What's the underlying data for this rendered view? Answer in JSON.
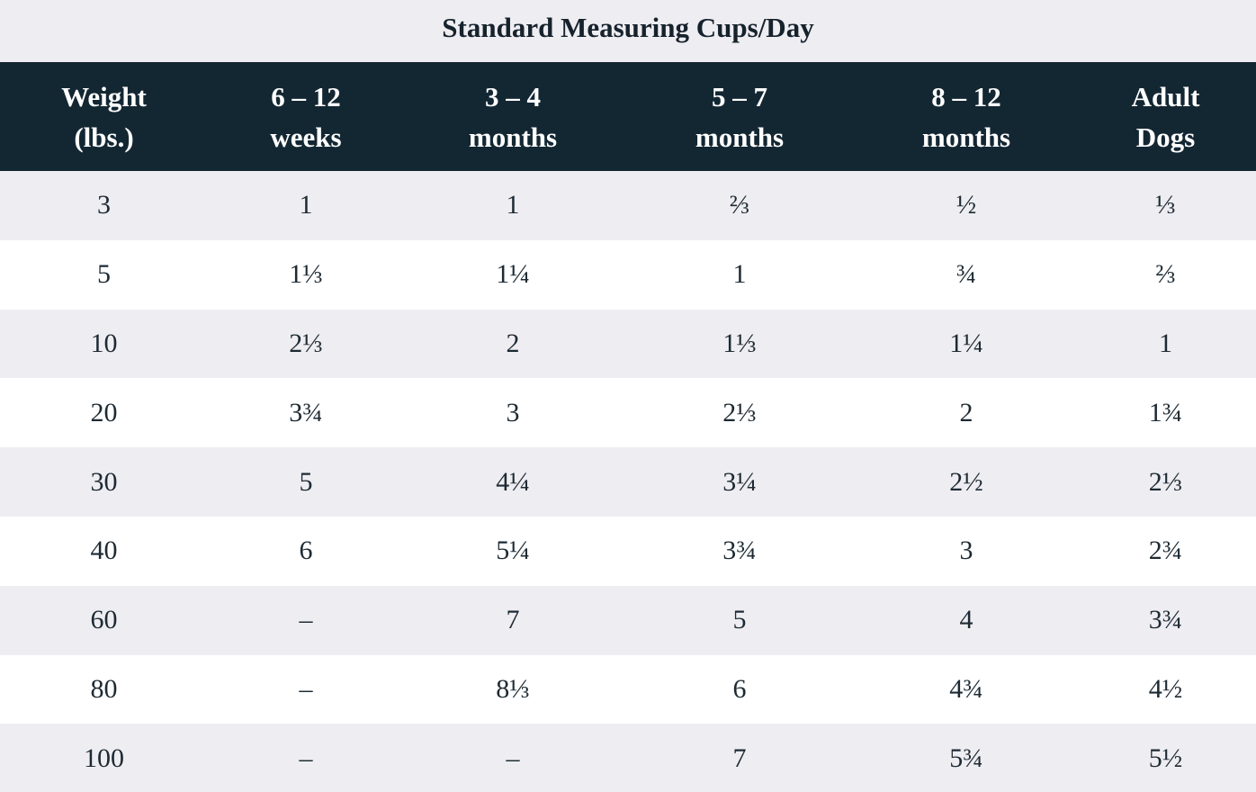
{
  "title": "Standard Measuring Cups/Day",
  "headers": [
    {
      "line1": "Weight",
      "line2": "(lbs.)"
    },
    {
      "line1": "6 – 12",
      "line2": "weeks"
    },
    {
      "line1": "3 – 4",
      "line2": "months"
    },
    {
      "line1": "5 – 7",
      "line2": "months"
    },
    {
      "line1": "8 – 12",
      "line2": "months"
    },
    {
      "line1": "Adult",
      "line2": "Dogs"
    }
  ],
  "rows": [
    [
      "3",
      "1",
      "1",
      "⅔",
      "½",
      "⅓"
    ],
    [
      "5",
      "1⅓",
      "1¼",
      "1",
      "¾",
      "⅔"
    ],
    [
      "10",
      "2⅓",
      "2",
      "1⅓",
      "1¼",
      "1"
    ],
    [
      "20",
      "3¾",
      "3",
      "2⅓",
      "2",
      "1¾"
    ],
    [
      "30",
      "5",
      "4¼",
      "3¼",
      "2½",
      "2⅓"
    ],
    [
      "40",
      "6",
      "5¼",
      "3¾",
      "3",
      "2¾"
    ],
    [
      "60",
      "–",
      "7",
      "5",
      "4",
      "3¾"
    ],
    [
      "80",
      "–",
      "8⅓",
      "6",
      "4¾",
      "4½"
    ],
    [
      "100",
      "–",
      "–",
      "7",
      "5¾",
      "5½"
    ]
  ]
}
